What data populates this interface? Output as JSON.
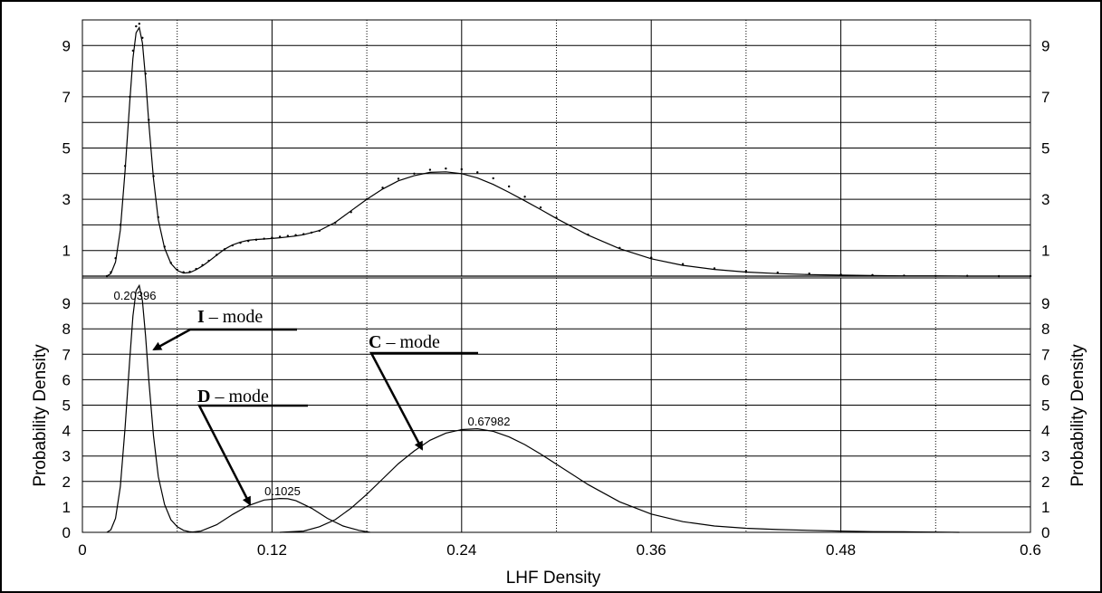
{
  "chart_data": [
    {
      "type": "line",
      "name": "top",
      "xlim": [
        0,
        0.6
      ],
      "ylim": [
        0,
        10
      ],
      "y_ticks_left": [
        "1",
        "3",
        "5",
        "7",
        "9"
      ],
      "y_ticks_right": [
        "1",
        "3",
        "5",
        "7",
        "9"
      ],
      "grid": true,
      "series": [
        {
          "style": "solid",
          "x": [
            0.0155,
            0.018,
            0.021,
            0.024,
            0.027,
            0.03,
            0.032,
            0.034,
            0.036,
            0.038,
            0.04,
            0.042,
            0.045,
            0.048,
            0.052,
            0.056,
            0.06,
            0.064,
            0.068,
            0.072,
            0.076,
            0.08,
            0.085,
            0.09,
            0.095,
            0.1,
            0.105,
            0.11,
            0.115,
            0.12,
            0.125,
            0.13,
            0.135,
            0.14,
            0.145,
            0.15,
            0.16,
            0.17,
            0.18,
            0.19,
            0.2,
            0.21,
            0.22,
            0.23,
            0.24,
            0.25,
            0.26,
            0.27,
            0.28,
            0.29,
            0.3,
            0.32,
            0.34,
            0.36,
            0.38,
            0.4,
            0.42,
            0.44,
            0.46,
            0.48,
            0.5,
            0.52,
            0.54,
            0.56,
            0.58,
            0.6
          ],
          "y": [
            0.0,
            0.1,
            0.55,
            1.8,
            4.1,
            6.8,
            8.5,
            9.5,
            9.7,
            9.1,
            7.7,
            6.0,
            3.8,
            2.2,
            1.1,
            0.5,
            0.22,
            0.12,
            0.14,
            0.25,
            0.4,
            0.58,
            0.82,
            1.05,
            1.22,
            1.33,
            1.4,
            1.43,
            1.45,
            1.47,
            1.5,
            1.53,
            1.57,
            1.62,
            1.7,
            1.78,
            2.1,
            2.55,
            3.0,
            3.4,
            3.72,
            3.92,
            4.05,
            4.07,
            4.0,
            3.83,
            3.58,
            3.27,
            2.94,
            2.6,
            2.25,
            1.6,
            1.07,
            0.68,
            0.42,
            0.26,
            0.16,
            0.1,
            0.06,
            0.04,
            0.02,
            0.01,
            0.01,
            0.0,
            0.0,
            0.0
          ]
        },
        {
          "style": "dotted",
          "x": [
            0.0155,
            0.018,
            0.021,
            0.024,
            0.027,
            0.03,
            0.032,
            0.034,
            0.036,
            0.038,
            0.04,
            0.042,
            0.045,
            0.048,
            0.052,
            0.056,
            0.06,
            0.064,
            0.068,
            0.072,
            0.076,
            0.08,
            0.085,
            0.09,
            0.095,
            0.1,
            0.105,
            0.11,
            0.115,
            0.12,
            0.125,
            0.13,
            0.135,
            0.14,
            0.145,
            0.15,
            0.16,
            0.17,
            0.18,
            0.19,
            0.2,
            0.21,
            0.22,
            0.23,
            0.24,
            0.25,
            0.26,
            0.27,
            0.28,
            0.29,
            0.3,
            0.32,
            0.34,
            0.36,
            0.38,
            0.4,
            0.42,
            0.44,
            0.46,
            0.48,
            0.5,
            0.52,
            0.54,
            0.56,
            0.58,
            0.6
          ],
          "y": [
            0.0,
            0.15,
            0.7,
            2.0,
            4.3,
            7.0,
            8.8,
            9.75,
            9.85,
            9.3,
            7.9,
            6.1,
            3.9,
            2.3,
            1.15,
            0.52,
            0.25,
            0.15,
            0.17,
            0.28,
            0.43,
            0.6,
            0.83,
            1.05,
            1.2,
            1.3,
            1.37,
            1.42,
            1.46,
            1.5,
            1.54,
            1.57,
            1.6,
            1.64,
            1.7,
            1.77,
            2.08,
            2.5,
            3.0,
            3.45,
            3.8,
            4.0,
            4.15,
            4.2,
            4.17,
            4.05,
            3.82,
            3.5,
            3.1,
            2.68,
            2.28,
            1.62,
            1.1,
            0.72,
            0.47,
            0.3,
            0.2,
            0.14,
            0.1,
            0.06,
            0.04,
            0.02,
            0.01,
            0.01,
            0.0,
            0.0
          ]
        }
      ]
    },
    {
      "type": "line",
      "name": "bottom",
      "xlim": [
        0,
        0.6
      ],
      "ylim": [
        0,
        10
      ],
      "x_ticks": [
        "0",
        "0.12",
        "0.24",
        "0.36",
        "0.48",
        "0.6"
      ],
      "y_ticks_left": [
        "0",
        "1",
        "2",
        "3",
        "4",
        "5",
        "6",
        "7",
        "8",
        "9"
      ],
      "y_ticks_right": [
        "0",
        "1",
        "2",
        "3",
        "4",
        "5",
        "6",
        "7",
        "8",
        "9"
      ],
      "grid": true,
      "xlabel": "LHF Density",
      "ylabel": "Probability Density",
      "ylabel_right": "Probability Density",
      "series": [
        {
          "style": "solid",
          "x": [
            0.0155,
            0.018,
            0.021,
            0.024,
            0.027,
            0.03,
            0.032,
            0.034,
            0.036,
            0.038,
            0.04,
            0.042,
            0.045,
            0.048,
            0.052,
            0.056,
            0.06,
            0.064,
            0.068,
            0.072
          ],
          "y": [
            0.0,
            0.1,
            0.55,
            1.8,
            4.1,
            6.8,
            8.5,
            9.5,
            9.7,
            9.1,
            7.7,
            6.0,
            3.8,
            2.2,
            1.1,
            0.5,
            0.22,
            0.08,
            0.02,
            0.0
          ]
        },
        {
          "style": "solid",
          "x": [
            0.068,
            0.075,
            0.085,
            0.095,
            0.105,
            0.115,
            0.125,
            0.13,
            0.135,
            0.145,
            0.155,
            0.165,
            0.175,
            0.182
          ],
          "y": [
            0.0,
            0.05,
            0.3,
            0.7,
            1.05,
            1.27,
            1.33,
            1.32,
            1.25,
            0.95,
            0.55,
            0.25,
            0.08,
            0.0
          ]
        },
        {
          "style": "solid",
          "x": [
            0.125,
            0.14,
            0.15,
            0.16,
            0.17,
            0.18,
            0.19,
            0.2,
            0.21,
            0.22,
            0.23,
            0.24,
            0.25,
            0.26,
            0.27,
            0.28,
            0.29,
            0.3,
            0.32,
            0.34,
            0.36,
            0.38,
            0.4,
            0.42,
            0.44,
            0.46,
            0.48,
            0.5,
            0.52,
            0.54,
            0.555
          ],
          "y": [
            0.0,
            0.05,
            0.22,
            0.5,
            0.95,
            1.5,
            2.1,
            2.7,
            3.2,
            3.62,
            3.9,
            4.04,
            4.07,
            3.97,
            3.75,
            3.45,
            3.08,
            2.68,
            1.88,
            1.2,
            0.72,
            0.42,
            0.25,
            0.16,
            0.11,
            0.08,
            0.05,
            0.03,
            0.02,
            0.01,
            0.0
          ]
        }
      ],
      "data_labels": [
        "0.20396",
        "0.1025",
        "0.67982"
      ],
      "annotations": [
        {
          "letter": "I",
          "rest": " – mode"
        },
        {
          "letter": "D",
          "rest": " – mode"
        },
        {
          "letter": "C",
          "rest": " – mode"
        }
      ]
    }
  ]
}
